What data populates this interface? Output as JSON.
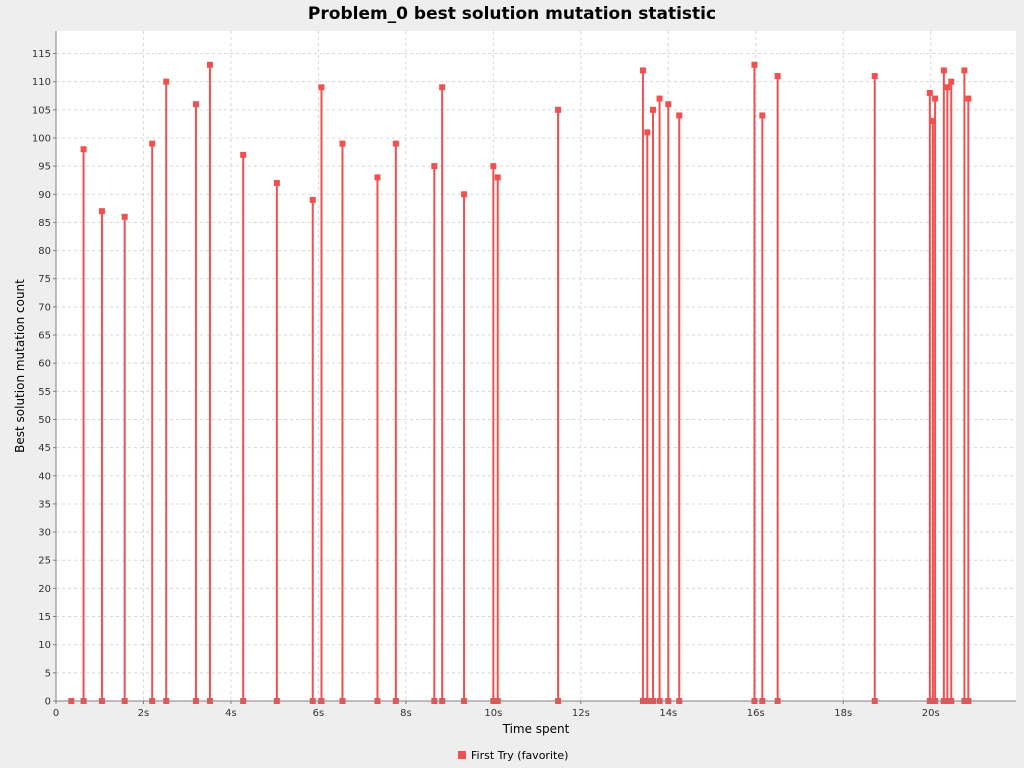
{
  "chart_data": {
    "type": "line",
    "title": "Problem_0 best solution mutation statistic",
    "xlabel": "Time spent",
    "ylabel": "Best solution mutation count",
    "x_unit": "seconds",
    "xlim": [
      0,
      21.95
    ],
    "ylim": [
      0,
      119
    ],
    "x_ticks": [
      0,
      2,
      4,
      6,
      8,
      10,
      12,
      14,
      16,
      18,
      20
    ],
    "x_tick_labels": [
      "0",
      "2s",
      "4s",
      "6s",
      "8s",
      "10s",
      "12s",
      "14s",
      "16s",
      "18s",
      "20s"
    ],
    "y_ticks": [
      0,
      5,
      10,
      15,
      20,
      25,
      30,
      35,
      40,
      45,
      50,
      55,
      60,
      65,
      70,
      75,
      80,
      85,
      90,
      95,
      100,
      105,
      110,
      115
    ],
    "y_tick_labels": [
      "0",
      "5",
      "10",
      "15",
      "20",
      "25",
      "30",
      "35",
      "40",
      "45",
      "50",
      "55",
      "60",
      "65",
      "70",
      "75",
      "80",
      "85",
      "90",
      "95",
      "100",
      "105",
      "110",
      "115"
    ],
    "grid": true,
    "legend_position": "bottom-center",
    "series": [
      {
        "name": "First Try (favorite)",
        "color": "#f05050",
        "points": [
          {
            "x": 0.35,
            "y": 0
          },
          {
            "x": 0.63,
            "y": 98
          },
          {
            "x": 1.05,
            "y": 87
          },
          {
            "x": 1.57,
            "y": 86
          },
          {
            "x": 2.2,
            "y": 99
          },
          {
            "x": 2.52,
            "y": 110
          },
          {
            "x": 3.2,
            "y": 106
          },
          {
            "x": 3.52,
            "y": 113
          },
          {
            "x": 4.28,
            "y": 97
          },
          {
            "x": 5.05,
            "y": 92
          },
          {
            "x": 5.87,
            "y": 89
          },
          {
            "x": 6.07,
            "y": 109
          },
          {
            "x": 6.55,
            "y": 99
          },
          {
            "x": 7.35,
            "y": 93
          },
          {
            "x": 7.77,
            "y": 99
          },
          {
            "x": 8.65,
            "y": 95
          },
          {
            "x": 8.83,
            "y": 109
          },
          {
            "x": 9.33,
            "y": 90
          },
          {
            "x": 10.0,
            "y": 95
          },
          {
            "x": 10.1,
            "y": 93
          },
          {
            "x": 11.48,
            "y": 105
          },
          {
            "x": 13.42,
            "y": 112
          },
          {
            "x": 13.52,
            "y": 101
          },
          {
            "x": 13.65,
            "y": 105
          },
          {
            "x": 13.8,
            "y": 107
          },
          {
            "x": 14.0,
            "y": 106
          },
          {
            "x": 14.25,
            "y": 104
          },
          {
            "x": 15.97,
            "y": 113
          },
          {
            "x": 16.15,
            "y": 104
          },
          {
            "x": 16.5,
            "y": 111
          },
          {
            "x": 18.72,
            "y": 111
          },
          {
            "x": 19.98,
            "y": 108
          },
          {
            "x": 20.05,
            "y": 103
          },
          {
            "x": 20.1,
            "y": 107
          },
          {
            "x": 20.3,
            "y": 112
          },
          {
            "x": 20.38,
            "y": 109
          },
          {
            "x": 20.47,
            "y": 110
          },
          {
            "x": 20.77,
            "y": 112
          },
          {
            "x": 20.86,
            "y": 107
          }
        ]
      }
    ]
  }
}
